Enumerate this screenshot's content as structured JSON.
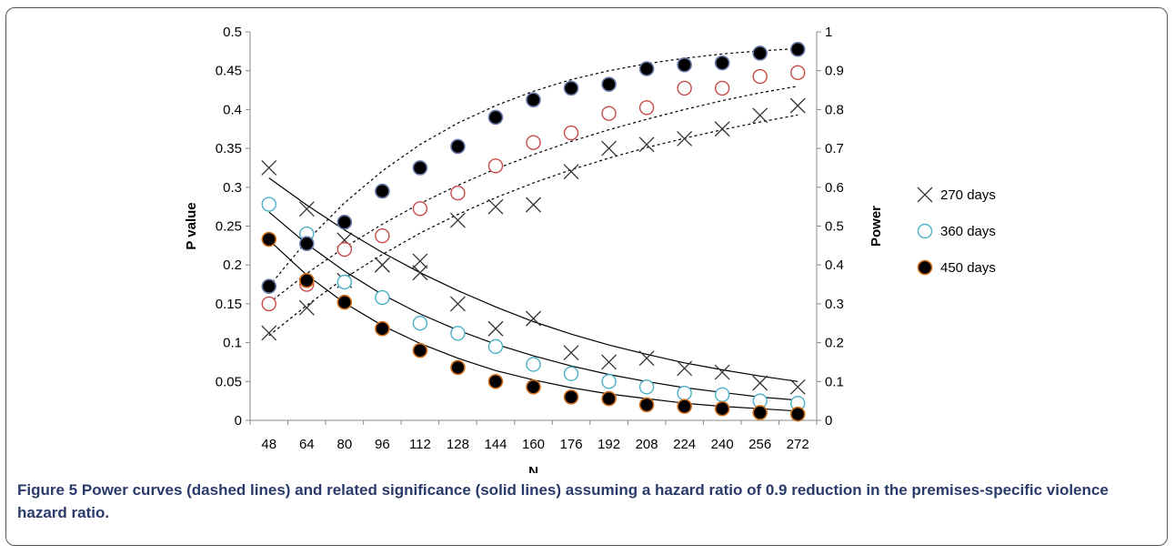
{
  "chart_data": {
    "type": "scatter",
    "x": [
      48,
      64,
      80,
      96,
      112,
      128,
      144,
      160,
      176,
      192,
      208,
      224,
      240,
      256,
      272
    ],
    "xlabel": "N",
    "ylabel_left": "P value",
    "ylabel_right": "Power",
    "ylim_left": [
      0,
      0.5
    ],
    "ylim_right": [
      0,
      1
    ],
    "yticks_left": [
      "0",
      "0.05",
      "0.1",
      "0.15",
      "0.2",
      "0.25",
      "0.3",
      "0.35",
      "0.4",
      "0.45",
      "0.5"
    ],
    "yticks_right": [
      "0",
      "0.1",
      "0.2",
      "0.3",
      "0.4",
      "0.5",
      "0.6",
      "0.7",
      "0.8",
      "0.9",
      "1"
    ],
    "grid": false,
    "legend_position": "right",
    "series": [
      {
        "name": "270 days",
        "marker": "x",
        "color": "#333333",
        "pvalue": [
          0.325,
          0.272,
          0.232,
          0.2,
          0.19,
          0.15,
          0.118,
          0.131,
          0.087,
          0.075,
          0.08,
          0.067,
          0.062,
          0.048,
          0.043
        ],
        "power": [
          0.225,
          0.29,
          0.36,
          0.4,
          0.41,
          0.515,
          0.55,
          0.555,
          0.64,
          0.7,
          0.71,
          0.725,
          0.75,
          0.785,
          0.81
        ],
        "pvalue_fit": [
          0.312,
          0.277,
          0.245,
          0.216,
          0.19,
          0.167,
          0.146,
          0.127,
          0.111,
          0.097,
          0.085,
          0.074,
          0.065,
          0.057,
          0.05
        ],
        "power_fit": [
          0.218,
          0.296,
          0.366,
          0.427,
          0.482,
          0.53,
          0.573,
          0.611,
          0.645,
          0.675,
          0.702,
          0.726,
          0.748,
          0.768,
          0.786
        ]
      },
      {
        "name": "360 days",
        "marker": "circle-open",
        "color_legend": "#4ab0c8",
        "color_pvalue": "#4ab0c8",
        "color_power": "#c84a4a",
        "pvalue": [
          0.278,
          0.24,
          0.178,
          0.158,
          0.125,
          0.112,
          0.095,
          0.072,
          0.06,
          0.05,
          0.043,
          0.035,
          0.033,
          0.025,
          0.022
        ],
        "power": [
          0.3,
          0.35,
          0.44,
          0.475,
          0.545,
          0.585,
          0.655,
          0.715,
          0.74,
          0.79,
          0.805,
          0.855,
          0.855,
          0.885,
          0.895
        ],
        "pvalue_fit": [
          0.268,
          0.227,
          0.192,
          0.162,
          0.137,
          0.116,
          0.098,
          0.083,
          0.07,
          0.059,
          0.05,
          0.042,
          0.036,
          0.03,
          0.026
        ],
        "power_fit": [
          0.302,
          0.378,
          0.445,
          0.505,
          0.558,
          0.605,
          0.647,
          0.684,
          0.718,
          0.748,
          0.775,
          0.8,
          0.823,
          0.843,
          0.86
        ]
      },
      {
        "name": "450 days",
        "marker": "circle-filled",
        "color": "#000000",
        "color_pvalue_edge": "#d0701f",
        "color_power_edge": "#6a7aaa",
        "pvalue": [
          0.233,
          0.18,
          0.152,
          0.118,
          0.09,
          0.068,
          0.05,
          0.043,
          0.03,
          0.028,
          0.02,
          0.018,
          0.015,
          0.01,
          0.008
        ],
        "power": [
          0.345,
          0.455,
          0.51,
          0.59,
          0.65,
          0.705,
          0.78,
          0.825,
          0.855,
          0.865,
          0.905,
          0.915,
          0.92,
          0.945,
          0.955
        ],
        "pvalue_fit": [
          0.232,
          0.187,
          0.151,
          0.122,
          0.099,
          0.08,
          0.064,
          0.052,
          0.042,
          0.034,
          0.028,
          0.022,
          0.018,
          0.015,
          0.012
        ],
        "power_fit": [
          0.345,
          0.462,
          0.56,
          0.642,
          0.71,
          0.765,
          0.81,
          0.847,
          0.877,
          0.9,
          0.918,
          0.932,
          0.943,
          0.951,
          0.957
        ]
      }
    ]
  },
  "caption": {
    "label": "Figure 5",
    "text": "Power curves (dashed lines) and related significance (solid lines) assuming a hazard ratio of 0.9 reduction in the premises-specific violence hazard ratio."
  }
}
